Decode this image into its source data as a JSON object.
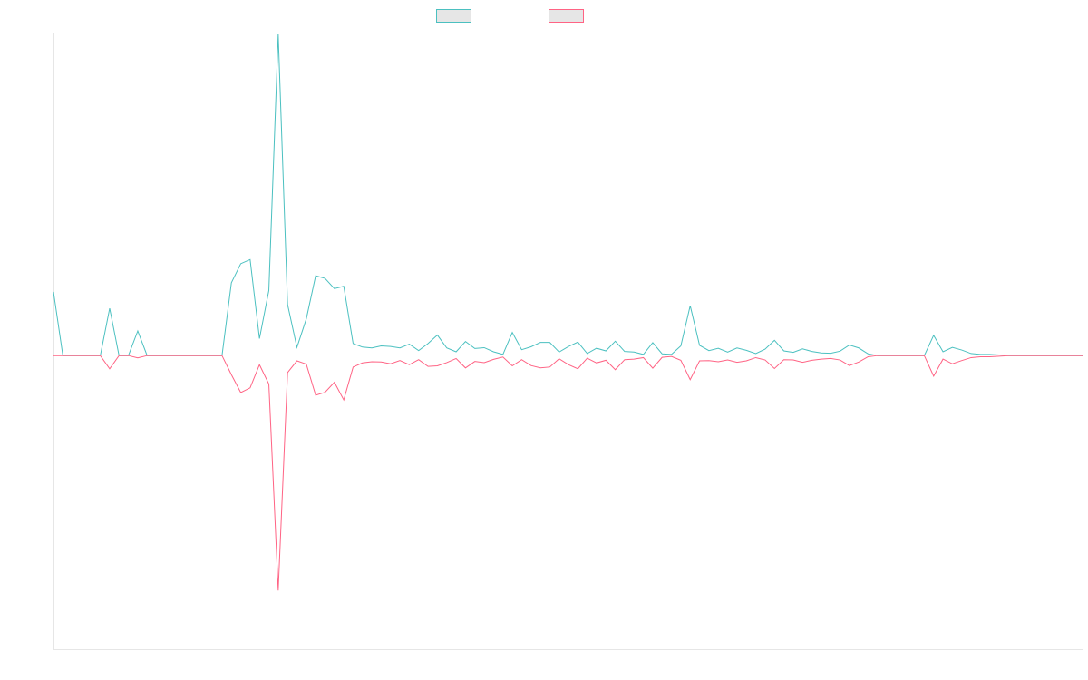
{
  "chart_data": {
    "type": "line",
    "title": "",
    "xlabel": "",
    "ylabel": "",
    "grid": false,
    "legend": "top-center",
    "ylim": [
      -1,
      1.1
    ],
    "series": [
      {
        "color": "#4bc0c0",
        "values": [
          0.217,
          0,
          0,
          0,
          0,
          0,
          0.161,
          0,
          0,
          0.084,
          0,
          0,
          0,
          0,
          0,
          0,
          0,
          0,
          0,
          0.248,
          0.313,
          0.327,
          0.058,
          0.222,
          1.095,
          0.174,
          0.028,
          0.125,
          0.272,
          0.263,
          0.228,
          0.236,
          0.041,
          0.029,
          0.026,
          0.033,
          0.031,
          0.026,
          0.039,
          0.017,
          0.041,
          0.07,
          0.026,
          0.013,
          0.048,
          0.024,
          0.027,
          0.013,
          0.004,
          0.079,
          0.02,
          0.03,
          0.045,
          0.045,
          0.012,
          0.031,
          0.046,
          0.007,
          0.025,
          0.016,
          0.049,
          0.014,
          0.012,
          0.004,
          0.044,
          0.006,
          0.004,
          0.033,
          0.17,
          0.035,
          0.017,
          0.025,
          0.012,
          0.026,
          0.018,
          0.007,
          0.022,
          0.052,
          0.016,
          0.011,
          0.023,
          0.014,
          0.009,
          0.008,
          0.015,
          0.036,
          0.026,
          0.006,
          0,
          0,
          0,
          0,
          0,
          0,
          0.069,
          0.013,
          0.028,
          0.019,
          0.007,
          0.004,
          0.004,
          0.002,
          0,
          0,
          0,
          0,
          0,
          0,
          0,
          0,
          0
        ]
      },
      {
        "color": "#ff6384",
        "values": [
          0,
          0,
          0,
          0,
          0,
          0,
          -0.045,
          0,
          0,
          -0.008,
          0,
          0,
          0,
          0,
          0,
          0,
          0,
          0,
          0,
          -0.065,
          -0.126,
          -0.11,
          -0.031,
          -0.097,
          -0.8,
          -0.058,
          -0.018,
          -0.029,
          -0.135,
          -0.125,
          -0.091,
          -0.151,
          -0.039,
          -0.025,
          -0.021,
          -0.022,
          -0.028,
          -0.017,
          -0.031,
          -0.014,
          -0.037,
          -0.035,
          -0.024,
          -0.01,
          -0.042,
          -0.02,
          -0.024,
          -0.013,
          -0.005,
          -0.035,
          -0.014,
          -0.034,
          -0.042,
          -0.039,
          -0.011,
          -0.031,
          -0.045,
          -0.009,
          -0.025,
          -0.016,
          -0.048,
          -0.014,
          -0.012,
          -0.007,
          -0.043,
          -0.006,
          -0.003,
          -0.016,
          -0.082,
          -0.018,
          -0.017,
          -0.021,
          -0.015,
          -0.023,
          -0.018,
          -0.007,
          -0.015,
          -0.044,
          -0.014,
          -0.015,
          -0.023,
          -0.016,
          -0.012,
          -0.01,
          -0.015,
          -0.034,
          -0.022,
          -0.004,
          0,
          0,
          0,
          0,
          0,
          0,
          -0.07,
          -0.012,
          -0.028,
          -0.017,
          -0.007,
          -0.004,
          -0.004,
          -0.002,
          0,
          0,
          0,
          0,
          0,
          0,
          0,
          0,
          0
        ]
      }
    ]
  }
}
